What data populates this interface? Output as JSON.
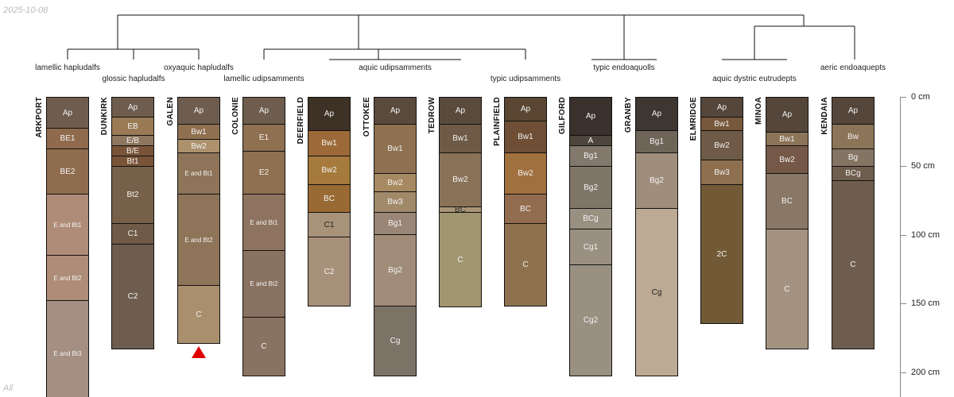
{
  "date": "2025-10-08",
  "group_label": "All",
  "depth_axis": {
    "unit": "cm",
    "ticks": [
      {
        "value": 0,
        "label": "0 cm"
      },
      {
        "value": 50,
        "label": "50 cm"
      },
      {
        "value": 100,
        "label": "100 cm"
      },
      {
        "value": 150,
        "label": "150 cm"
      },
      {
        "value": 200,
        "label": "200 cm"
      }
    ]
  },
  "taxa": [
    "lamellic hapludalfs",
    "glossic hapludalfs",
    "oxyaquic hapludalfs",
    "lamellic udipsamments",
    "aquic udipsamments",
    "typic udipsamments",
    "typic endoaquolls",
    "aquic dystric eutrudepts",
    "aeric endoaquepts"
  ],
  "profiles": [
    {
      "name": "ARKPORT",
      "horizons": [
        [
          "Ap",
          0,
          23,
          "#6e5d4e"
        ],
        [
          "BE1",
          23,
          38,
          "#8f6a4c"
        ],
        [
          "BE2",
          38,
          71,
          "#8f6c4e"
        ],
        [
          "E and Bt1",
          71,
          115,
          "#ae8c78"
        ],
        [
          "E and Bt2",
          115,
          148,
          "#ae8c78"
        ],
        [
          "E and Bt3",
          148,
          225,
          "#a48f82"
        ]
      ]
    },
    {
      "name": "DUNKIRK",
      "horizons": [
        [
          "Ap",
          0,
          15,
          "#6e5d4e"
        ],
        [
          "EB",
          15,
          28,
          "#9a7a55"
        ],
        [
          "E/B",
          28,
          36,
          "#8e7660"
        ],
        [
          "B/E",
          36,
          43,
          "#7a5438"
        ],
        [
          "Bt1",
          43,
          51,
          "#7a5438"
        ],
        [
          "Bt2",
          51,
          92,
          "#76604a"
        ],
        [
          "C1",
          92,
          107,
          "#6e5a46"
        ],
        [
          "C2",
          107,
          183,
          "#6e5d4e"
        ]
      ]
    },
    {
      "name": "GALEN",
      "horizons": [
        [
          "Ap",
          0,
          20,
          "#6e5d4e"
        ],
        [
          "Bw1",
          20,
          31,
          "#8f7050"
        ],
        [
          "Bw2",
          31,
          41,
          "#ac916c"
        ],
        [
          "E and Bt1",
          41,
          71,
          "#8e7458"
        ],
        [
          "E and Bt2",
          71,
          137,
          "#8e7458"
        ],
        [
          "C",
          137,
          179,
          "#a98f6e"
        ]
      ],
      "bottom_marker": true
    },
    {
      "name": "COLONIE",
      "horizons": [
        [
          "Ap",
          0,
          20,
          "#6e5d4e"
        ],
        [
          "E1",
          20,
          40,
          "#8f7050"
        ],
        [
          "E2",
          40,
          71,
          "#8f7050"
        ],
        [
          "E and Bt1",
          71,
          112,
          "#8e7460"
        ],
        [
          "E and Bt2",
          112,
          160,
          "#8a7262"
        ],
        [
          "C",
          160,
          203,
          "#8a7262"
        ]
      ]
    },
    {
      "name": "DEERFIELD",
      "horizons": [
        [
          "Ap",
          0,
          25,
          "#3e3226"
        ],
        [
          "Bw1",
          25,
          43,
          "#9c6a38"
        ],
        [
          "Bw2",
          43,
          64,
          "#a67a3c"
        ],
        [
          "BC",
          64,
          84,
          "#9a6a34"
        ],
        [
          "C1",
          84,
          102,
          "#a8937a"
        ],
        [
          "C2",
          102,
          152,
          "#a8917a"
        ]
      ]
    },
    {
      "name": "OTTOKEE",
      "horizons": [
        [
          "Ap",
          0,
          20,
          "#5a4a3c"
        ],
        [
          "Bw1",
          20,
          56,
          "#8f7050"
        ],
        [
          "Bw2",
          56,
          69,
          "#a88a62"
        ],
        [
          "Bw3",
          69,
          84,
          "#a08a6a"
        ],
        [
          "Bg1",
          84,
          100,
          "#9a8676"
        ],
        [
          "Bg2",
          100,
          152,
          "#a08c78"
        ],
        [
          "Cg",
          152,
          203,
          "#7c7266"
        ]
      ]
    },
    {
      "name": "TEDROW",
      "horizons": [
        [
          "Ap",
          0,
          20,
          "#5a4a3c"
        ],
        [
          "Bw1",
          20,
          41,
          "#6e5a46"
        ],
        [
          "Bw2",
          41,
          80,
          "#8a7258"
        ],
        [
          "BC",
          80,
          84,
          "#a89476"
        ],
        [
          "C",
          84,
          153,
          "#a29670"
        ]
      ]
    },
    {
      "name": "PLAINFIELD",
      "horizons": [
        [
          "Ap",
          0,
          18,
          "#5a4632"
        ],
        [
          "Bw1",
          18,
          41,
          "#6e4e34"
        ],
        [
          "Bw2",
          41,
          71,
          "#a0703e"
        ],
        [
          "BC",
          71,
          92,
          "#926c4e"
        ],
        [
          "C",
          92,
          152,
          "#8e7250"
        ]
      ]
    },
    {
      "name": "GILFORD",
      "horizons": [
        [
          "Ap",
          0,
          28,
          "#3a302c"
        ],
        [
          "A",
          28,
          36,
          "#4e463c"
        ],
        [
          "Bg1",
          36,
          51,
          "#82786c"
        ],
        [
          "Bg2",
          51,
          81,
          "#807668"
        ],
        [
          "BCg",
          81,
          96,
          "#9a9082"
        ],
        [
          "Cg1",
          96,
          122,
          "#9a9082"
        ],
        [
          "Cg2",
          122,
          203,
          "#9a9082"
        ]
      ]
    },
    {
      "name": "GRANBY",
      "horizons": [
        [
          "Ap",
          0,
          25,
          "#3e3630"
        ],
        [
          "Bg1",
          25,
          41,
          "#6e6458"
        ],
        [
          "Bg2",
          41,
          81,
          "#a08e7c"
        ],
        [
          "Cg",
          81,
          203,
          "#bcaa94"
        ]
      ]
    },
    {
      "name": "ELMRIDGE",
      "horizons": [
        [
          "Ap",
          0,
          15,
          "#54463a"
        ],
        [
          "Bw1",
          15,
          25,
          "#76583a"
        ],
        [
          "Bw2",
          25,
          46,
          "#6e5a46"
        ],
        [
          "Bw3",
          46,
          64,
          "#8e7050"
        ],
        [
          "2C",
          64,
          165,
          "#725a36"
        ]
      ]
    },
    {
      "name": "MINOA",
      "horizons": [
        [
          "Ap",
          0,
          26,
          "#54463a"
        ],
        [
          "Bw1",
          26,
          36,
          "#8c7458"
        ],
        [
          "Bw2",
          36,
          56,
          "#765848"
        ],
        [
          "BC",
          56,
          96,
          "#8a7866"
        ],
        [
          "C",
          96,
          183,
          "#a49280"
        ]
      ]
    },
    {
      "name": "KENDAIA",
      "horizons": [
        [
          "Ap",
          0,
          20,
          "#54463a"
        ],
        [
          "Bw",
          20,
          38,
          "#8c7458"
        ],
        [
          "Bg",
          38,
          51,
          "#847464"
        ],
        [
          "BCg",
          51,
          61,
          "#6e5e4e"
        ],
        [
          "C",
          61,
          183,
          "#6e5d4e"
        ]
      ]
    }
  ]
}
